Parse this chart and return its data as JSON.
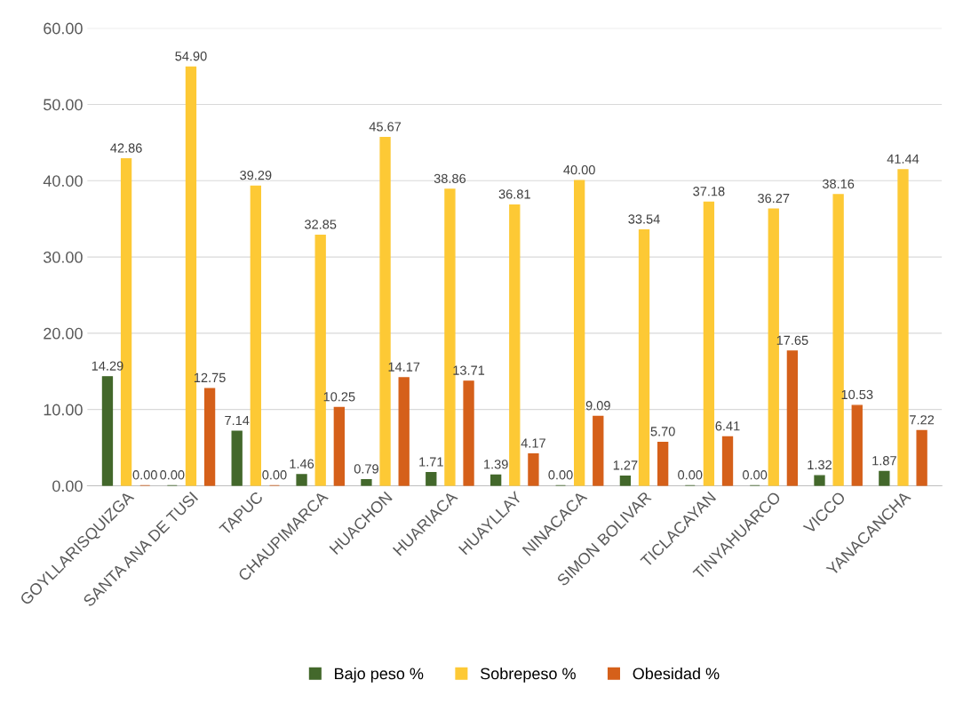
{
  "chart_data": {
    "type": "bar",
    "categories": [
      "GOYLLARISQUIZGA",
      "SANTA ANA DE TUSI",
      "TAPUC",
      "CHAUPIMARCA",
      "HUACHON",
      "HUARIACA",
      "HUAYLLAY",
      "NINACACA",
      "SIMON BOLIVAR",
      "TICLACAYAN",
      "TINYAHUARCO",
      "VICCO",
      "YANACANCHA"
    ],
    "series": [
      {
        "name": "Bajo peso %",
        "color": "#43682b",
        "values": [
          14.29,
          0.0,
          7.14,
          1.46,
          0.79,
          1.71,
          1.39,
          0.0,
          1.27,
          0.0,
          0.0,
          1.32,
          1.87
        ],
        "value_labels": [
          "14.29",
          "0.00",
          "7.14",
          "1.46",
          "0.79",
          "1.71",
          "1.39",
          "0.00",
          "1.27",
          "0.00",
          "0.00",
          "1.32",
          "1.87"
        ]
      },
      {
        "name": "Sobrepeso %",
        "color": "#fdc935",
        "values": [
          42.86,
          54.9,
          39.29,
          32.85,
          45.67,
          38.86,
          36.81,
          40.0,
          33.54,
          37.18,
          36.27,
          38.16,
          41.44
        ],
        "value_labels": [
          "42.86",
          "54.90",
          "39.29",
          "32.85",
          "45.67",
          "38.86",
          "36.81",
          "40.00",
          "33.54",
          "37.18",
          "36.27",
          "38.16",
          "41.44"
        ]
      },
      {
        "name": "Obesidad %",
        "color": "#d5601a",
        "values": [
          0.0,
          12.75,
          0.0,
          10.25,
          14.17,
          13.71,
          4.17,
          9.09,
          5.7,
          6.41,
          17.65,
          10.53,
          7.22
        ],
        "value_labels": [
          "0.00",
          "12.75",
          "0.00",
          "10.25",
          "14.17",
          "13.71",
          "4.17",
          "9.09",
          "5.70",
          "6.41",
          "17.65",
          "10.53",
          "7.22"
        ]
      }
    ],
    "ylim": [
      0,
      60
    ],
    "yticks": [
      {
        "value": 0,
        "label": "0.00"
      },
      {
        "value": 10,
        "label": "10.00"
      },
      {
        "value": 20,
        "label": "20.00"
      },
      {
        "value": 30,
        "label": "30.00"
      },
      {
        "value": 40,
        "label": "40.00"
      },
      {
        "value": 50,
        "label": "50.00"
      },
      {
        "value": 60,
        "label": "60.00"
      }
    ],
    "grid": "y",
    "legend": "bottom"
  }
}
